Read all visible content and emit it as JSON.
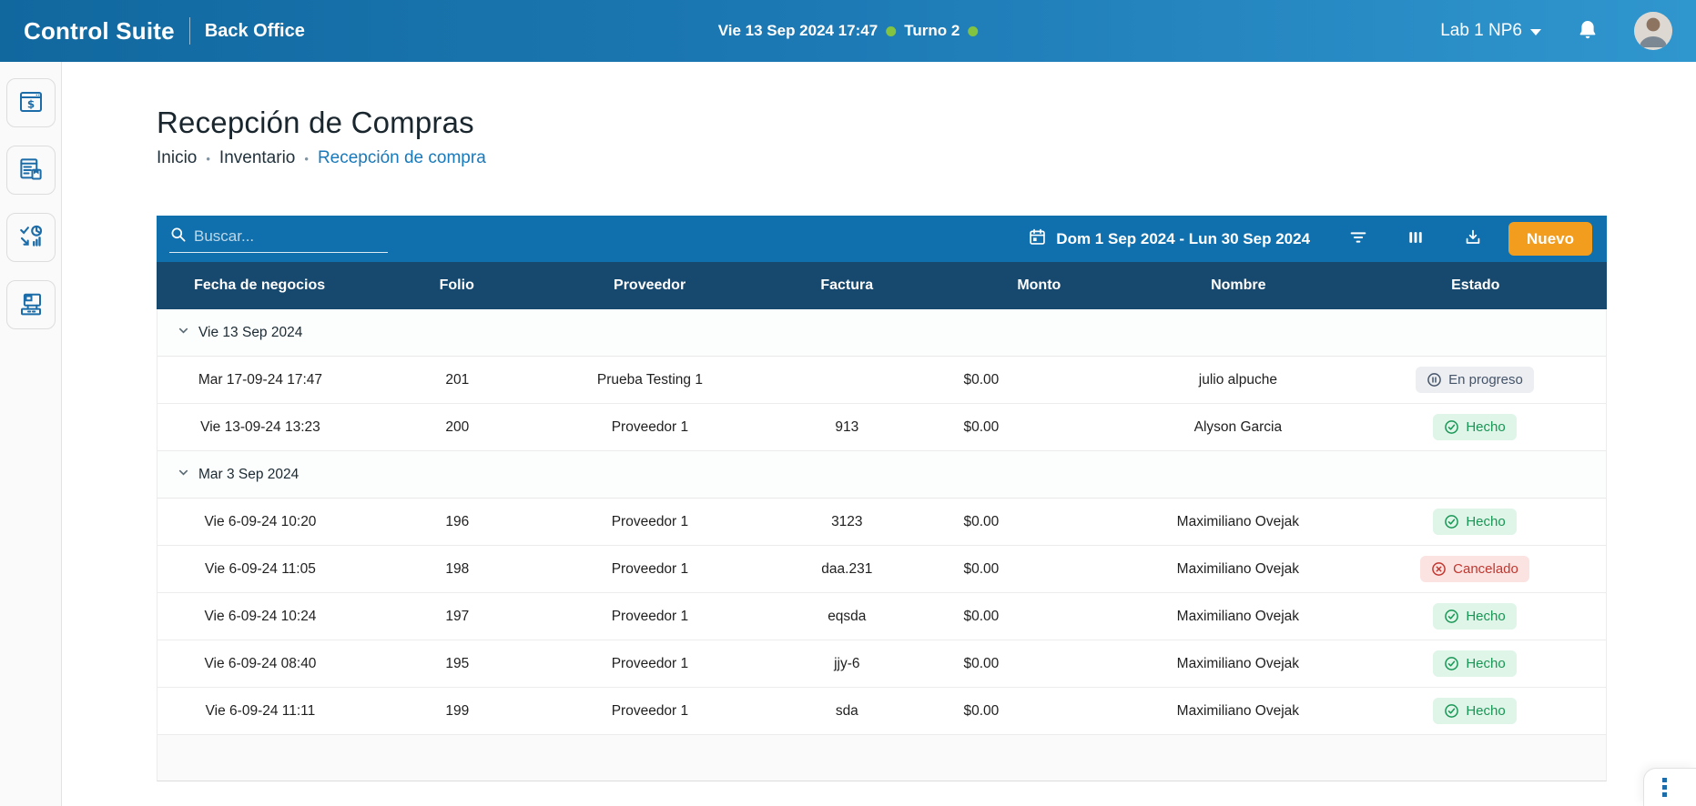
{
  "topbar": {
    "brand": "Control Suite",
    "module": "Back Office",
    "datetime": "Vie 13 Sep 2024 17:47",
    "shift": "Turno 2",
    "location": "Lab 1 NP6"
  },
  "sidebar": {
    "items": [
      {
        "icon": "pos-window-dollar-icon"
      },
      {
        "icon": "report-form-icon"
      },
      {
        "icon": "analytics-check-pie-icon"
      },
      {
        "icon": "devices-terminal-icon"
      }
    ]
  },
  "page": {
    "title": "Recepción de Compras",
    "breadcrumb": [
      "Inicio",
      "Inventario",
      "Recepción de compra"
    ]
  },
  "toolbar": {
    "search_placeholder": "Buscar...",
    "date_range": "Dom 1 Sep 2024 - Lun 30 Sep 2024",
    "new_label": "Nuevo",
    "icons": [
      "calendar-icon",
      "filter-icon",
      "columns-icon",
      "download-icon"
    ]
  },
  "table": {
    "columns": [
      "Fecha de negocios",
      "Folio",
      "Proveedor",
      "Factura",
      "Monto",
      "Nombre",
      "Estado"
    ],
    "groups": [
      {
        "label": "Vie 13 Sep 2024",
        "rows": [
          {
            "fecha": "Mar 17-09-24 17:47",
            "folio": "201",
            "proveedor": "Prueba Testing 1",
            "factura": "",
            "monto": "$0.00",
            "nombre": "julio alpuche",
            "estado": "En progreso",
            "estado_type": "progress"
          },
          {
            "fecha": "Vie 13-09-24 13:23",
            "folio": "200",
            "proveedor": "Proveedor 1",
            "factura": "913",
            "monto": "$0.00",
            "nombre": "Alyson Garcia",
            "estado": "Hecho",
            "estado_type": "done"
          }
        ]
      },
      {
        "label": "Mar 3 Sep 2024",
        "rows": [
          {
            "fecha": "Vie 6-09-24 10:20",
            "folio": "196",
            "proveedor": "Proveedor 1",
            "factura": "3123",
            "monto": "$0.00",
            "nombre": "Maximiliano Ovejak",
            "estado": "Hecho",
            "estado_type": "done"
          },
          {
            "fecha": "Vie 6-09-24 11:05",
            "folio": "198",
            "proveedor": "Proveedor 1",
            "factura": "daa.231",
            "monto": "$0.00",
            "nombre": "Maximiliano Ovejak",
            "estado": "Cancelado",
            "estado_type": "cancel"
          },
          {
            "fecha": "Vie 6-09-24 10:24",
            "folio": "197",
            "proveedor": "Proveedor 1",
            "factura": "eqsda",
            "monto": "$0.00",
            "nombre": "Maximiliano Ovejak",
            "estado": "Hecho",
            "estado_type": "done"
          },
          {
            "fecha": "Vie 6-09-24 08:40",
            "folio": "195",
            "proveedor": "Proveedor 1",
            "factura": "jjy-6",
            "monto": "$0.00",
            "nombre": "Maximiliano Ovejak",
            "estado": "Hecho",
            "estado_type": "done"
          },
          {
            "fecha": "Vie 6-09-24 11:11",
            "folio": "199",
            "proveedor": "Proveedor 1",
            "factura": "sda",
            "monto": "$0.00",
            "nombre": "Maximiliano Ovejak",
            "estado": "Hecho",
            "estado_type": "done"
          }
        ]
      }
    ]
  },
  "corner_menu": {
    "icon": "kebab-dots-icon"
  },
  "colors": {
    "topbar_gradient_left": "#11689f",
    "topbar_gradient_right": "#3096ce",
    "toolbar_blue": "#0f70ad",
    "table_header_navy": "#17486e",
    "accent_orange": "#f29d1e",
    "sidebar_icon_blue": "#1b6ca8",
    "breadcrumb_active_blue": "#1879bb",
    "green_dot": "#82c341",
    "status_done_bg": "#def5e8",
    "status_done_text": "#199655",
    "status_progress_bg": "#eceef1",
    "status_progress_text": "#44546a",
    "status_cancel_bg": "#fbe3e1",
    "status_cancel_text": "#c1362f"
  }
}
